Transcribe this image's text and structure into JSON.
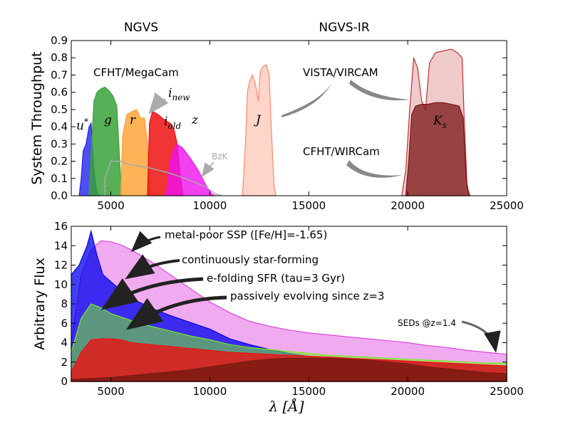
{
  "chart_data": [
    {
      "type": "area",
      "title": "",
      "xlabel": "",
      "ylabel": "System Throughput",
      "xlim": [
        3000,
        25000
      ],
      "ylim": [
        0,
        0.9
      ],
      "xticks": [
        5000,
        10000,
        15000,
        20000,
        25000
      ],
      "yticks": [
        0.0,
        0.1,
        0.2,
        0.3,
        0.4,
        0.5,
        0.6,
        0.7,
        0.8,
        0.9
      ],
      "header_left": "NGVS",
      "header_right": "NGVS-IR",
      "annotations": {
        "megacam": "CFHT/MegaCam",
        "vircam": "VISTA/VIRCAM",
        "wircam": "CFHT/WIRCam",
        "bzk": "BzK",
        "inew": "i",
        "inew_sub": "new",
        "iold": "i",
        "iold_sub": "old"
      },
      "series": [
        {
          "name": "u*",
          "label": "u",
          "label_sup": "*",
          "color": "#2222ee",
          "points": [
            [
              3400,
              0
            ],
            [
              3500,
              0.1
            ],
            [
              3600,
              0.26
            ],
            [
              3750,
              0.3
            ],
            [
              3900,
              0.4
            ],
            [
              4000,
              0.42
            ],
            [
              4100,
              0.22
            ],
            [
              4200,
              0.1
            ],
            [
              4300,
              0.02
            ],
            [
              4400,
              0
            ]
          ]
        },
        {
          "name": "g",
          "label": "g",
          "color": "#3aa23a",
          "points": [
            [
              3900,
              0
            ],
            [
              4000,
              0.25
            ],
            [
              4150,
              0.55
            ],
            [
              4300,
              0.6
            ],
            [
              4500,
              0.62
            ],
            [
              4700,
              0.63
            ],
            [
              4900,
              0.61
            ],
            [
              5100,
              0.58
            ],
            [
              5300,
              0.52
            ],
            [
              5450,
              0.2
            ],
            [
              5550,
              0
            ]
          ]
        },
        {
          "name": "r",
          "label": "r",
          "color": "#ffa030",
          "points": [
            [
              5500,
              0
            ],
            [
              5600,
              0.35
            ],
            [
              5800,
              0.47
            ],
            [
              6100,
              0.49
            ],
            [
              6300,
              0.5
            ],
            [
              6500,
              0.45
            ],
            [
              6700,
              0.45
            ],
            [
              6850,
              0.3
            ],
            [
              7000,
              0
            ]
          ]
        },
        {
          "name": "i_old",
          "label": "i",
          "label_sub": "old",
          "color": "#ee1111",
          "points": [
            [
              6850,
              0
            ],
            [
              6950,
              0.42
            ],
            [
              7100,
              0.49
            ],
            [
              7400,
              0.47
            ],
            [
              7700,
              0.44
            ],
            [
              8000,
              0.42
            ],
            [
              8200,
              0.38
            ],
            [
              8350,
              0.3
            ],
            [
              8500,
              0.12
            ],
            [
              8650,
              0
            ]
          ]
        },
        {
          "name": "z",
          "label": "z",
          "color": "#ee11ee",
          "points": [
            [
              7800,
              0
            ],
            [
              8000,
              0.2
            ],
            [
              8300,
              0.3
            ],
            [
              8600,
              0.28
            ],
            [
              9000,
              0.22
            ],
            [
              9400,
              0.15
            ],
            [
              9800,
              0.06
            ],
            [
              10100,
              0.01
            ],
            [
              10300,
              0
            ]
          ]
        },
        {
          "name": "J",
          "label": "J",
          "color": "#ff8866",
          "points": [
            [
              11650,
              0
            ],
            [
              11800,
              0.3
            ],
            [
              11900,
              0.6
            ],
            [
              12000,
              0.66
            ],
            [
              12150,
              0.7
            ],
            [
              12300,
              0.65
            ],
            [
              12450,
              0.55
            ],
            [
              12550,
              0.72
            ],
            [
              12700,
              0.75
            ],
            [
              12850,
              0.76
            ],
            [
              13000,
              0.7
            ],
            [
              13100,
              0.4
            ],
            [
              13250,
              0.05
            ],
            [
              13350,
              0
            ]
          ]
        },
        {
          "name": "VISTA Ks",
          "color": "#c03030",
          "points": [
            [
              19700,
              0
            ],
            [
              19900,
              0.15
            ],
            [
              20100,
              0.5
            ],
            [
              20300,
              0.8
            ],
            [
              20500,
              0.74
            ],
            [
              20700,
              0.55
            ],
            [
              20900,
              0.5
            ],
            [
              21100,
              0.77
            ],
            [
              21400,
              0.83
            ],
            [
              21800,
              0.84
            ],
            [
              22200,
              0.85
            ],
            [
              22500,
              0.83
            ],
            [
              22750,
              0.8
            ],
            [
              22850,
              0.45
            ],
            [
              23000,
              0.05
            ],
            [
              23150,
              0
            ]
          ]
        },
        {
          "name": "WIRCam Ks",
          "label": "K",
          "label_sub": "s",
          "color": "#7a1515",
          "points": [
            [
              19900,
              0
            ],
            [
              20050,
              0.2
            ],
            [
              20200,
              0.47
            ],
            [
              20400,
              0.52
            ],
            [
              20700,
              0.53
            ],
            [
              21000,
              0.53
            ],
            [
              21400,
              0.54
            ],
            [
              21800,
              0.54
            ],
            [
              22200,
              0.53
            ],
            [
              22600,
              0.52
            ],
            [
              22800,
              0.45
            ],
            [
              22950,
              0.1
            ],
            [
              23100,
              0
            ]
          ]
        },
        {
          "name": "BzK",
          "color": "#aaaaaa",
          "points": [
            [
              4700,
              0.1
            ],
            [
              5000,
              0.2
            ],
            [
              5500,
              0.2
            ],
            [
              6000,
              0.18
            ],
            [
              7000,
              0.16
            ],
            [
              8000,
              0.13
            ],
            [
              9000,
              0.09
            ],
            [
              9800,
              0.05
            ],
            [
              10300,
              0.01
            ],
            [
              10600,
              0
            ]
          ]
        }
      ]
    },
    {
      "type": "area",
      "title": "",
      "xlabel": "λ [Å]",
      "ylabel": "Arbitrary Flux",
      "xlim": [
        3000,
        25000
      ],
      "ylim": [
        0,
        16
      ],
      "xticks": [
        5000,
        10000,
        15000,
        20000,
        25000
      ],
      "yticks": [
        0,
        2,
        4,
        6,
        8,
        10,
        12,
        14,
        16
      ],
      "annotations": {
        "ssp": "metal-poor SSP ([Fe/H]=-1.65)",
        "sf": "continuously star-forming",
        "efold": "e-folding SFR (tau=3 Gyr)",
        "passive": "passively evolving since z=3",
        "seds": "SEDs @z=1.4"
      },
      "series": [
        {
          "name": "metal-poor SSP",
          "color": "#dd44dd",
          "x": [
            3000,
            3500,
            4000,
            4500,
            5000,
            5500,
            6000,
            7000,
            8000,
            9000,
            10000,
            11000,
            12000,
            13000,
            14000,
            15000,
            16000,
            17000,
            18000,
            19000,
            20000,
            21000,
            22000,
            23000,
            24000,
            25000
          ],
          "y": [
            4.0,
            11.0,
            13.6,
            14.5,
            14.4,
            14.1,
            13.6,
            12.4,
            11.0,
            9.6,
            8.2,
            7.1,
            6.2,
            5.7,
            5.3,
            5.0,
            4.8,
            4.6,
            4.4,
            4.2,
            4.0,
            3.7,
            3.5,
            3.2,
            3.0,
            2.8
          ]
        },
        {
          "name": "continuously star-forming",
          "color": "#0000ee",
          "x": [
            3000,
            3400,
            3800,
            4000,
            4300,
            4600,
            5000,
            5500,
            6000,
            7000,
            8000,
            9000,
            10000,
            11000,
            12000,
            13000,
            14000,
            15000,
            16000,
            17000,
            18000,
            19000,
            20000,
            21000,
            22000,
            23000,
            24000,
            25000
          ],
          "y": [
            11.0,
            12.0,
            14.0,
            15.5,
            13.0,
            11.0,
            10.3,
            9.4,
            8.6,
            7.6,
            6.8,
            6.1,
            5.4,
            4.4,
            3.8,
            3.3,
            2.9,
            2.6,
            2.5,
            2.4,
            2.2,
            2.1,
            2.0,
            1.9,
            1.8,
            1.7,
            1.6,
            1.5
          ]
        },
        {
          "name": "e-folding SFR (tau=3 Gyr)",
          "color": "#77ee22",
          "x": [
            3000,
            3500,
            4000,
            4500,
            5000,
            6000,
            7000,
            8000,
            9000,
            10000,
            11000,
            12000,
            13000,
            14000,
            15000,
            16000,
            17000,
            18000,
            19000,
            20000,
            21000,
            22000,
            23000,
            24000,
            25000
          ],
          "y": [
            3.0,
            6.5,
            8.0,
            7.6,
            7.0,
            6.3,
            5.7,
            5.2,
            4.7,
            4.3,
            3.8,
            3.5,
            3.3,
            3.1,
            2.9,
            2.7,
            2.6,
            2.5,
            2.4,
            2.3,
            2.2,
            2.1,
            2.0,
            1.9,
            1.9
          ]
        },
        {
          "name": "passively evolving since z=3",
          "color": "#ee1111",
          "x": [
            3000,
            3500,
            4000,
            4500,
            5000,
            5500,
            6000,
            7000,
            8000,
            9000,
            10000,
            11000,
            12000,
            13000,
            14000,
            15000,
            16000,
            17000,
            18000,
            19000,
            20000,
            21000,
            22000,
            23000,
            24000,
            25000
          ],
          "y": [
            1.0,
            3.0,
            4.3,
            4.4,
            4.4,
            4.3,
            4.0,
            3.8,
            3.6,
            3.4,
            3.2,
            3.0,
            2.9,
            2.8,
            2.7,
            2.6,
            2.5,
            2.4,
            2.3,
            2.2,
            2.1,
            2.0,
            1.9,
            1.8,
            1.7,
            1.6
          ]
        },
        {
          "name": "SEDs @z=1.4 (dark red)",
          "color": "#7a1a12",
          "x": [
            3000,
            4000,
            5000,
            6000,
            7000,
            8000,
            9000,
            10000,
            11000,
            12000,
            13000,
            14000,
            15000,
            16000,
            17000,
            18000,
            19000,
            20000,
            21000,
            22000,
            23000,
            24000,
            25000
          ],
          "y": [
            0.2,
            0.3,
            0.4,
            0.6,
            0.8,
            1.0,
            1.2,
            1.5,
            1.8,
            2.1,
            2.3,
            2.4,
            2.4,
            2.4,
            2.3,
            2.2,
            2.0,
            1.8,
            1.5,
            1.3,
            1.1,
            0.9,
            0.8
          ]
        }
      ]
    }
  ]
}
